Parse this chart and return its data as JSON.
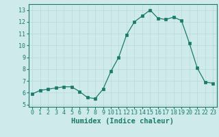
{
  "x": [
    0,
    1,
    2,
    3,
    4,
    5,
    6,
    7,
    8,
    9,
    10,
    11,
    12,
    13,
    14,
    15,
    16,
    17,
    18,
    19,
    20,
    21,
    22,
    23
  ],
  "y": [
    5.9,
    6.2,
    6.3,
    6.4,
    6.5,
    6.5,
    6.1,
    5.6,
    5.5,
    6.3,
    7.8,
    9.0,
    10.9,
    12.0,
    12.5,
    13.0,
    12.3,
    12.2,
    12.4,
    12.1,
    10.2,
    8.1,
    6.9,
    6.8
  ],
  "xlabel": "Humidex (Indice chaleur)",
  "ylim": [
    4.8,
    13.5
  ],
  "xlim": [
    -0.5,
    23.5
  ],
  "yticks": [
    5,
    6,
    7,
    8,
    9,
    10,
    11,
    12,
    13
  ],
  "xticks": [
    0,
    1,
    2,
    3,
    4,
    5,
    6,
    7,
    8,
    9,
    10,
    11,
    12,
    13,
    14,
    15,
    16,
    17,
    18,
    19,
    20,
    21,
    22,
    23
  ],
  "line_color": "#1a7a6a",
  "marker_size": 2.5,
  "bg_color": "#ceeaea",
  "grid_color": "#b8d8d8",
  "tick_fontsize": 6.0,
  "xlabel_fontsize": 7.5
}
